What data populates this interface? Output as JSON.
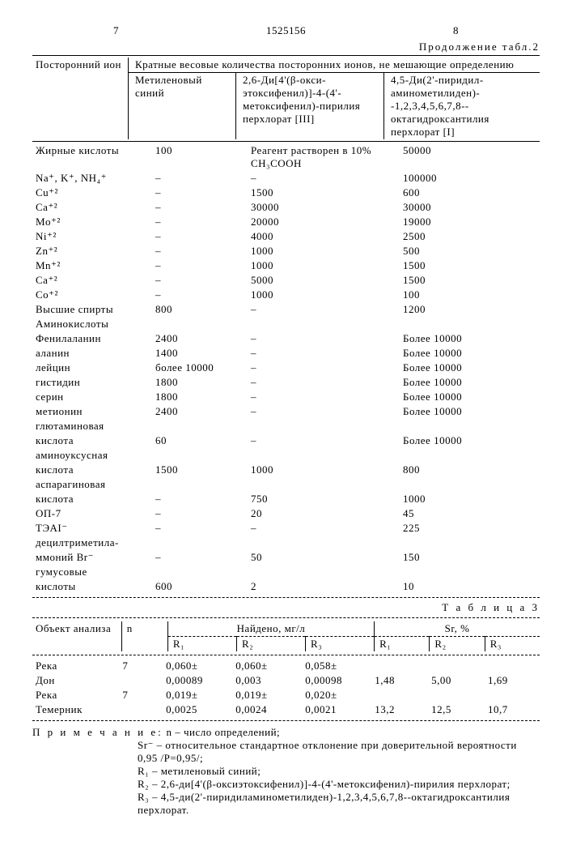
{
  "header": {
    "page_left": "7",
    "doc_id": "1525156",
    "page_right": "8",
    "continuation": "Продолжение табл.2"
  },
  "table2": {
    "col_headers": {
      "ion": "Посторонний ион",
      "main": "Кратные весовые количества посторонних ионов, не мешающие определению",
      "reagent1": "Метиленовый синий",
      "reagent2": "2,6-Ди[4'(β-окси-этоксифенил)]-4-(4'-метоксифенил)-пирилия перхлорат [III]",
      "reagent3": "4,5-Ди(2'-пиридил-аминометилиден)--1,2,3,4,5,6,7,8--октагидроксантилия перхлорат [I]"
    },
    "solvent_note": "Реагент растворен в 10% СН₃СООН",
    "rows": [
      {
        "ion": "Жирные кислоты",
        "r1": "100",
        "r2": "",
        "r3": "50000"
      },
      {
        "ion": "Na⁺, K⁺, NH₄⁺",
        "r1": "–",
        "r2": "–",
        "r3": "100000"
      },
      {
        "ion": "Cu⁺²",
        "r1": "–",
        "r2": "1500",
        "r3": "600"
      },
      {
        "ion": "Ca⁺²",
        "r1": "–",
        "r2": "30000",
        "r3": "30000"
      },
      {
        "ion": "Mo⁺²",
        "r1": "–",
        "r2": "20000",
        "r3": "19000"
      },
      {
        "ion": "Ni⁺²",
        "r1": "–",
        "r2": "4000",
        "r3": "2500"
      },
      {
        "ion": "Zn⁺²",
        "r1": "–",
        "r2": "1000",
        "r3": "500"
      },
      {
        "ion": "Mn⁺²",
        "r1": "–",
        "r2": "1000",
        "r3": "1500"
      },
      {
        "ion": "Ca⁺²",
        "r1": "–",
        "r2": "5000",
        "r3": "1500"
      },
      {
        "ion": "Co⁺²",
        "r1": "–",
        "r2": "1000",
        "r3": "100"
      },
      {
        "ion": "Высшие спирты",
        "r1": "800",
        "r2": "–",
        "r3": "1200"
      },
      {
        "ion": "Аминокислоты",
        "r1": "",
        "r2": "",
        "r3": ""
      },
      {
        "ion": "Фенилаланин",
        "r1": "2400",
        "r2": "–",
        "r3": "Более 10000"
      },
      {
        "ion": "аланин",
        "r1": "1400",
        "r2": "–",
        "r3": "Более 10000"
      },
      {
        "ion": "лейцин",
        "r1": "более 10000",
        "r2": "–",
        "r3": "Более 10000"
      },
      {
        "ion": "гистидин",
        "r1": "1800",
        "r2": "–",
        "r3": "Более 10000"
      },
      {
        "ion": "серин",
        "r1": "1800",
        "r2": "–",
        "r3": "Более 10000"
      },
      {
        "ion": "метионин",
        "r1": "2400",
        "r2": "–",
        "r3": "Более 10000"
      },
      {
        "ion": "глютаминовая",
        "r1": "",
        "r2": "",
        "r3": ""
      },
      {
        "ion": "кислота",
        "r1": "60",
        "r2": "–",
        "r3": "Более 10000"
      },
      {
        "ion": "аминоуксусная",
        "r1": "",
        "r2": "",
        "r3": ""
      },
      {
        "ion": "кислота",
        "r1": "1500",
        "r2": "1000",
        "r3": "800"
      },
      {
        "ion": "аспарагиновая",
        "r1": "",
        "r2": "",
        "r3": ""
      },
      {
        "ion": "кислота",
        "r1": "–",
        "r2": "750",
        "r3": "1000"
      },
      {
        "ion": "ОП-7",
        "r1": "–",
        "r2": "20",
        "r3": "45"
      },
      {
        "ion": "ТЭАI⁻",
        "r1": "–",
        "r2": "–",
        "r3": "225"
      },
      {
        "ion": "децилтриметила-",
        "r1": "",
        "r2": "",
        "r3": ""
      },
      {
        "ion": "ммоний Br⁻",
        "r1": "–",
        "r2": "50",
        "r3": "150"
      },
      {
        "ion": "гумусовые",
        "r1": "",
        "r2": "",
        "r3": ""
      },
      {
        "ion": "кислоты",
        "r1": "600",
        "r2": "2",
        "r3": "10"
      }
    ]
  },
  "table3": {
    "title": "Т а б л и ц а  3",
    "headers": {
      "obj": "Объект анализа",
      "n": "n",
      "found": "Найдено, мг/л",
      "sr": "Sr, %",
      "r1": "R₁",
      "r2": "R₂",
      "r3": "R₃"
    },
    "rows": [
      {
        "obj": "Река",
        "n": "7",
        "r1a": "0,060±",
        "r2a": "0,060±",
        "r3a": "0,058±",
        "sr1": "",
        "sr2": "",
        "sr3": ""
      },
      {
        "obj": "Дон",
        "n": "",
        "r1a": "0,00089",
        "r2a": "0,003",
        "r3a": "0,00098",
        "sr1": "1,48",
        "sr2": "5,00",
        "sr3": "1,69"
      },
      {
        "obj": "Река",
        "n": "7",
        "r1a": "0,019±",
        "r2a": "0,019±",
        "r3a": "0,020±",
        "sr1": "",
        "sr2": "",
        "sr3": ""
      },
      {
        "obj": "Темерник",
        "n": "",
        "r1a": "0,0025",
        "r2a": "0,0024",
        "r3a": "0,0021",
        "sr1": "13,2",
        "sr2": "12,5",
        "sr3": "10,7"
      }
    ]
  },
  "notes": {
    "head": "П р и м е ч а н и е:",
    "n": "n – число определений;",
    "sr": "Sr⁻ – относительное стандартное отклонение при доверительной вероятности 0,95 /Р=0,95/;",
    "r1": "R₁ – метиленовый синий;",
    "r2": "R₂ – 2,6-ди[4'(β-оксиэтоксифенил)]-4-(4'-метоксифенил)-пирилия перхлорат;",
    "r3": "R₃ – 4,5-ди(2'-пиридиламинометилиден)-1,2,3,4,5,6,7,8--октагидроксантилия перхлорат."
  }
}
